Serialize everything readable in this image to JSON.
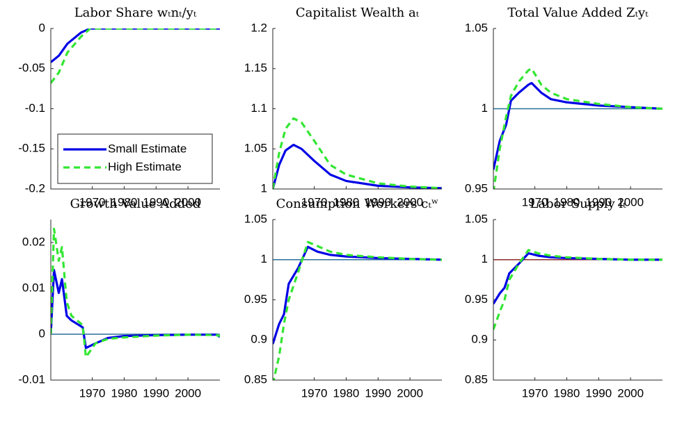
{
  "chart_data": [
    {
      "type": "line",
      "title": "Labor Share wₜnₜ/yₜ",
      "x": [
        1957,
        1959.5,
        1962.2,
        1966.5,
        1969.4,
        1980,
        1990,
        2000,
        2010
      ],
      "series": [
        {
          "name": "Small Estimate",
          "color": "#0000e6",
          "dash": false,
          "values": [
            -0.042,
            -0.034,
            -0.019,
            -0.005,
            0,
            0,
            0,
            0,
            0
          ]
        },
        {
          "name": "High Estimate",
          "color": "#33e633",
          "dash": true,
          "values": [
            -0.068,
            -0.055,
            -0.03,
            -0.01,
            0,
            0,
            0,
            0,
            0
          ]
        }
      ],
      "xlim": [
        1957,
        2010
      ],
      "xticks": [
        1970,
        1980,
        1990,
        2000
      ],
      "ylim": [
        -0.2,
        0
      ],
      "yticks": [
        -0.2,
        -0.15,
        -0.1,
        -0.05,
        0
      ],
      "legend": "lower left"
    },
    {
      "type": "line",
      "title": "Capitalist Wealth aₜ",
      "x": [
        1957,
        1959,
        1961,
        1963.5,
        1966,
        1970,
        1975,
        1980,
        1990,
        2000,
        2010
      ],
      "series": [
        {
          "color": "#0000e6",
          "dash": false,
          "values": [
            1.0,
            1.03,
            1.048,
            1.055,
            1.05,
            1.035,
            1.018,
            1.01,
            1.004,
            1.002,
            1.001
          ]
        },
        {
          "color": "#33e633",
          "dash": true,
          "values": [
            1.0,
            1.045,
            1.075,
            1.088,
            1.083,
            1.06,
            1.03,
            1.018,
            1.007,
            1.003,
            1.001
          ]
        }
      ],
      "xlim": [
        1957,
        2010
      ],
      "xticks": [
        1970,
        1980,
        1990,
        2000
      ],
      "ylim": [
        1,
        1.2
      ],
      "yticks": [
        1,
        1.05,
        1.1,
        1.15,
        1.2
      ]
    },
    {
      "type": "line",
      "title": "Total Value Added Zₜyₜ",
      "x": [
        1957,
        1959,
        1961,
        1962.5,
        1965,
        1968,
        1969,
        1972,
        1975,
        1980,
        1990,
        2000,
        2010
      ],
      "series": [
        {
          "color": "#0000e6",
          "dash": false,
          "values": [
            0.962,
            0.98,
            0.99,
            1.005,
            1.01,
            1.015,
            1.016,
            1.01,
            1.006,
            1.004,
            1.002,
            1.001,
            1.0
          ]
        },
        {
          "color": "#33e633",
          "dash": true,
          "values": [
            0.948,
            0.975,
            0.995,
            1.008,
            1.017,
            1.024,
            1.025,
            1.015,
            1.01,
            1.006,
            1.003,
            1.001,
            1.0
          ]
        }
      ],
      "reference_line": {
        "value": 1,
        "color": "#2a6f9a"
      },
      "xlim": [
        1957,
        2010
      ],
      "xticks": [
        1970,
        1980,
        1990,
        2000
      ],
      "ylim": [
        0.95,
        1.05
      ],
      "yticks": [
        0.95,
        1,
        1.05
      ]
    },
    {
      "type": "line",
      "title": "Growth Value Added",
      "x": [
        1957,
        1958,
        1959.5,
        1960.5,
        1962,
        1963.5,
        1967,
        1968,
        1971,
        1975,
        1980,
        1990,
        2000,
        2009,
        2010
      ],
      "series": [
        {
          "color": "#0000e6",
          "dash": false,
          "values": [
            0,
            0.014,
            0.009,
            0.012,
            0.004,
            0.003,
            0.0015,
            -0.003,
            -0.002,
            -0.0008,
            -0.0004,
            -0.0002,
            -0.0001,
            -0.0001,
            -0.0006
          ]
        },
        {
          "color": "#33e633",
          "dash": true,
          "values": [
            0,
            0.023,
            0.016,
            0.019,
            0.007,
            0.004,
            0.002,
            -0.005,
            -0.002,
            -0.001,
            -0.0007,
            -0.0003,
            -0.0001,
            -0.0002,
            -0.0004
          ]
        }
      ],
      "reference_line": {
        "value": 0,
        "color": "#2a6f9a"
      },
      "xlim": [
        1957,
        2010
      ],
      "xticks": [
        1970,
        1980,
        1990,
        2000
      ],
      "ylim": [
        -0.01,
        0.025
      ],
      "yticks": [
        -0.01,
        0,
        0.01,
        0.02
      ]
    },
    {
      "type": "line",
      "title": "Consumption Workers cₜʷ",
      "x": [
        1957,
        1959,
        1960.5,
        1962,
        1965,
        1968,
        1971,
        1975,
        1980,
        1990,
        2000,
        2010
      ],
      "series": [
        {
          "color": "#0000e6",
          "dash": false,
          "values": [
            0.895,
            0.92,
            0.932,
            0.97,
            0.99,
            1.016,
            1.01,
            1.006,
            1.004,
            1.002,
            1.001,
            1.0
          ]
        },
        {
          "color": "#33e633",
          "dash": true,
          "values": [
            0.845,
            0.88,
            0.92,
            0.95,
            0.985,
            1.022,
            1.017,
            1.01,
            1.006,
            1.003,
            1.001,
            1.0
          ]
        }
      ],
      "reference_line": {
        "value": 1,
        "color": "#2a6f9a"
      },
      "xlim": [
        1957,
        2010
      ],
      "xticks": [
        1970,
        1980,
        1990,
        2000
      ],
      "ylim": [
        0.85,
        1.05
      ],
      "yticks": [
        0.85,
        0.9,
        0.95,
        1,
        1.05
      ]
    },
    {
      "type": "line",
      "title": "Labor Supply lₜ",
      "x": [
        1957,
        1959,
        1960.5,
        1962,
        1965,
        1968,
        1971,
        1975,
        1980,
        1990,
        2000,
        2010
      ],
      "series": [
        {
          "color": "#0000e6",
          "dash": false,
          "values": [
            0.945,
            0.958,
            0.965,
            0.983,
            0.995,
            1.008,
            1.005,
            1.003,
            1.002,
            1.001,
            1.0,
            1.0
          ]
        },
        {
          "color": "#33e633",
          "dash": true,
          "values": [
            0.913,
            0.935,
            0.95,
            0.975,
            0.995,
            1.012,
            1.008,
            1.005,
            1.003,
            1.001,
            1.0,
            1.0
          ]
        }
      ],
      "reference_line": {
        "value": 1,
        "color": "#8b2a2a"
      },
      "xlim": [
        1957,
        2010
      ],
      "xticks": [
        1970,
        1980,
        1990,
        2000
      ],
      "ylim": [
        0.85,
        1.05
      ],
      "yticks": [
        0.85,
        0.9,
        0.95,
        1,
        1.05
      ]
    }
  ]
}
